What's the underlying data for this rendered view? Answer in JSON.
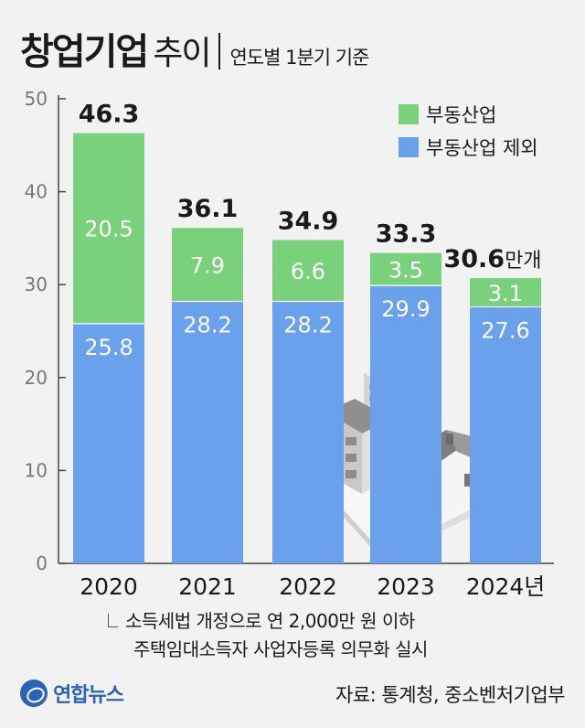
{
  "header": {
    "title_main": "창업기업",
    "title_sub": "추이",
    "title_note": "연도별 1분기 기준"
  },
  "footnote": {
    "line1": "소득세법 개정으로 연 2,000만 원 이하",
    "line2": "주택임대소득자 사업자등록 의무화 실시"
  },
  "source": "자료: 통계청, 중소벤처기업부",
  "logo": {
    "text": "연합뉴스",
    "icon": "yonhap-logo-icon"
  },
  "unit_suffix": "만개",
  "colors": {
    "green": "#7ad17c",
    "blue": "#6aa1ec",
    "text": "#1a1a1a"
  },
  "illustration": {
    "icon": "buildings-and-house-icon"
  },
  "chart_data": {
    "type": "bar",
    "stacked": true,
    "categories": [
      "2020",
      "2021",
      "2022",
      "2023",
      "2024년"
    ],
    "series": [
      {
        "name": "부동산업 제외",
        "values": [
          25.8,
          28.2,
          28.2,
          29.9,
          27.6
        ],
        "color": "#6aa1ec"
      },
      {
        "name": "부동산업",
        "values": [
          20.5,
          7.9,
          6.6,
          3.5,
          3.1
        ],
        "color": "#7ad17c"
      }
    ],
    "totals": [
      "46.3",
      "36.1",
      "34.9",
      "33.3",
      "30.6"
    ],
    "segment_labels": [
      [
        "25.8",
        "28.2",
        "28.2",
        "29.9",
        "27.6"
      ],
      [
        "20.5",
        "7.9",
        "6.6",
        "3.5",
        "3.1"
      ]
    ],
    "yticks": [
      "0",
      "10",
      "20",
      "30",
      "40",
      "50"
    ],
    "ylim": [
      0,
      50
    ],
    "legend": [
      "부동산업",
      "부동산업 제외"
    ],
    "legend_position": "top-right",
    "grid": false
  }
}
